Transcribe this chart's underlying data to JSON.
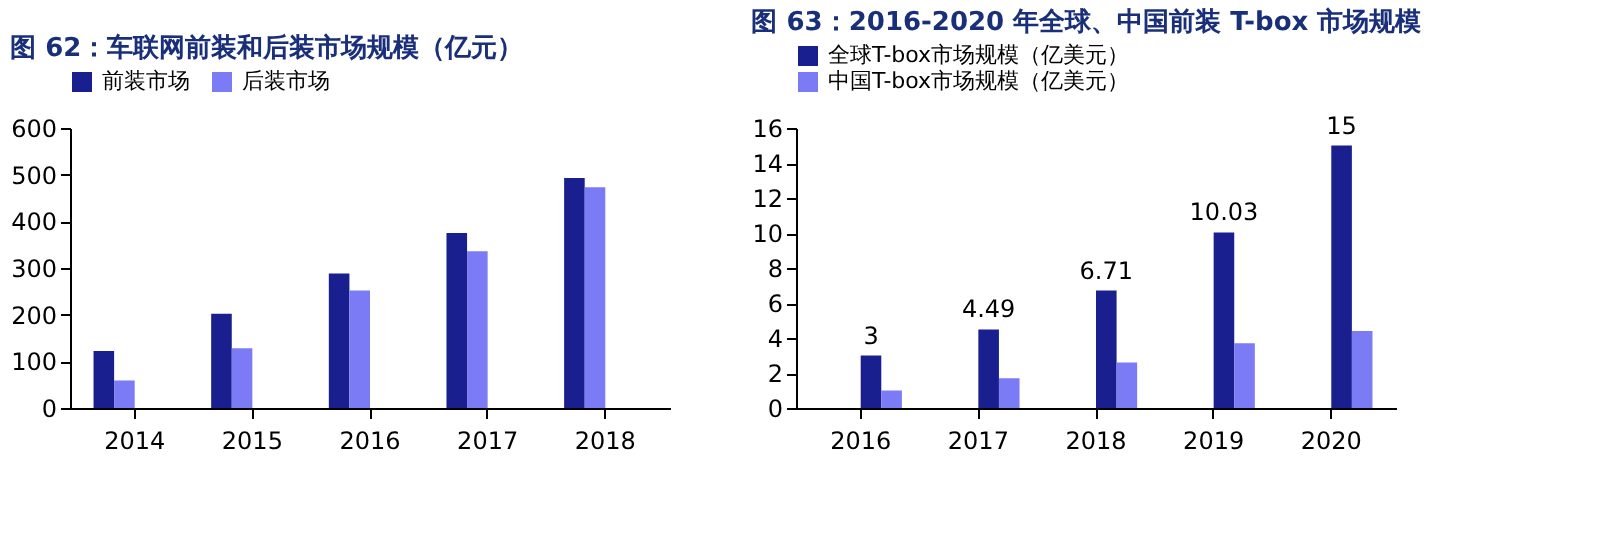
{
  "chart_data": [
    {
      "type": "bar",
      "title": "图 62：车联网前装和后装市场规模（亿元）",
      "categories": [
        "2014",
        "2015",
        "2016",
        "2017",
        "2018"
      ],
      "series": [
        {
          "name": "前装市场",
          "color": "#1a1f8f",
          "values": [
            122,
            202,
            288,
            375,
            493
          ]
        },
        {
          "name": "后装市场",
          "color": "#7b7bf5",
          "values": [
            59,
            128,
            252,
            336,
            473
          ]
        }
      ],
      "ylim": [
        0,
        600
      ],
      "yticks": [
        0,
        100,
        200,
        300,
        400,
        500,
        600
      ],
      "grid": false,
      "legend": "top"
    },
    {
      "type": "bar",
      "title": "图 63：2016-2020 年全球、中国前装 T-box 市场规模",
      "categories": [
        "2016",
        "2017",
        "2018",
        "2019",
        "2020"
      ],
      "series": [
        {
          "name": "全球T-box市场规模（亿美元）",
          "color": "#1a1f8f",
          "values": [
            3,
            4.49,
            6.71,
            10.03,
            15
          ],
          "value_labels": [
            "3",
            "4.49",
            "6.71",
            "10.03",
            "15"
          ]
        },
        {
          "name": "中国T-box市场规模（亿美元）",
          "color": "#7b7bf5",
          "values": [
            1.0,
            1.7,
            2.6,
            3.7,
            4.4
          ]
        }
      ],
      "ylim": [
        0,
        16
      ],
      "yticks": [
        0,
        2,
        4,
        6,
        8,
        10,
        12,
        14,
        16
      ],
      "grid": false,
      "legend": "top left"
    }
  ]
}
